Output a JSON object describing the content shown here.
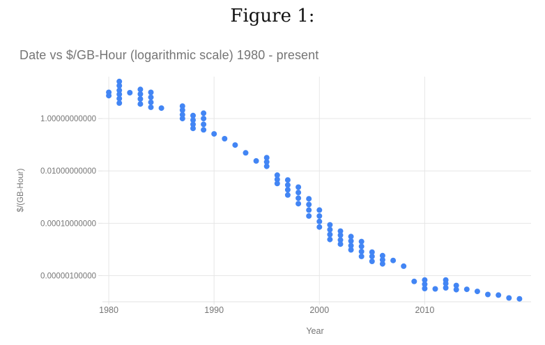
{
  "figure": {
    "caption": "Figure 1:"
  },
  "theme": {
    "background": "#ffffff",
    "grid_color": "#e6e6e6",
    "axis_line_color": "#e0e0e0",
    "label_color": "#757575",
    "title_color": "#757575",
    "caption_color": "#111111"
  },
  "chart_data": {
    "type": "scatter",
    "title": "Date vs $/GB-Hour (logarithmic scale) 1980 - present",
    "xlabel": "Year",
    "ylabel": "$/(GB-Hour)",
    "legend": "none",
    "grid": true,
    "point_color": "#4285f4",
    "x_axis": {
      "min": 1979.4,
      "max": 2020.1,
      "ticks": [
        1980,
        1990,
        2000,
        2010
      ]
    },
    "y_axis": {
      "scale": "log",
      "min": 1e-07,
      "max": 39.8,
      "tick_values": [
        1,
        0.01,
        0.0001,
        1e-06
      ],
      "tick_labels": [
        "1.00000000000",
        "0.01000000000",
        "0.00010000000",
        "0.00000100000"
      ]
    },
    "clusters": [
      {
        "year": 1980,
        "values": [
          10,
          7.5
        ]
      },
      {
        "year": 1981,
        "values": [
          26,
          18,
          12,
          8.5,
          5.8,
          3.9
        ]
      },
      {
        "year": 1982,
        "values": [
          9.7
        ]
      },
      {
        "year": 1983,
        "values": [
          13,
          8.6,
          5.6,
          3.6
        ]
      },
      {
        "year": 1984,
        "values": [
          10,
          6.5,
          4.2,
          2.7
        ]
      },
      {
        "year": 1985,
        "values": [
          2.5
        ]
      },
      {
        "year": 1987,
        "values": [
          3.0,
          2.1,
          1.4,
          1.0
        ]
      },
      {
        "year": 1988,
        "values": [
          1.3,
          0.88,
          0.6,
          0.42
        ]
      },
      {
        "year": 1989,
        "values": [
          1.6,
          1.0,
          0.6,
          0.37
        ]
      },
      {
        "year": 1990,
        "values": [
          0.26
        ]
      },
      {
        "year": 1991,
        "values": [
          0.17
        ]
      },
      {
        "year": 1992,
        "values": [
          0.097
        ]
      },
      {
        "year": 1993,
        "values": [
          0.049
        ]
      },
      {
        "year": 1994,
        "values": [
          0.024
        ]
      },
      {
        "year": 1995,
        "values": [
          0.032,
          0.022,
          0.015
        ]
      },
      {
        "year": 1996,
        "values": [
          0.0069,
          0.0047,
          0.0033
        ]
      },
      {
        "year": 1997,
        "values": [
          0.0045,
          0.0029,
          0.0019,
          0.0012
        ]
      },
      {
        "year": 1998,
        "values": [
          0.0024,
          0.0015,
          0.00091,
          0.00056
        ]
      },
      {
        "year": 1999,
        "values": [
          0.00086,
          0.00052,
          0.00032,
          0.00019
        ]
      },
      {
        "year": 2000,
        "values": [
          0.00032,
          0.00019,
          0.000117,
          7.2e-05
        ]
      },
      {
        "year": 2001,
        "values": [
          8.7e-05,
          5.7e-05,
          3.7e-05,
          2.4e-05
        ]
      },
      {
        "year": 2002,
        "values": [
          5e-05,
          3.5e-05,
          2.3e-05,
          1.6e-05
        ]
      },
      {
        "year": 2003,
        "values": [
          3.1e-05,
          2.1e-05,
          1.4e-05,
          9.6e-06
        ]
      },
      {
        "year": 2004,
        "values": [
          2e-05,
          1.3e-05,
          8.3e-06,
          5.4e-06
        ]
      },
      {
        "year": 2005,
        "values": [
          7.9e-06,
          5.4e-06,
          3.5e-06
        ]
      },
      {
        "year": 2006,
        "values": [
          5.8e-06,
          4e-06,
          2.8e-06
        ]
      },
      {
        "year": 2007,
        "values": [
          3.8e-06
        ]
      },
      {
        "year": 2008,
        "values": [
          2.3e-06
        ]
      },
      {
        "year": 2009,
        "values": [
          6e-07
        ]
      },
      {
        "year": 2010,
        "values": [
          6.8e-07,
          4.7e-07,
          3.2e-07
        ]
      },
      {
        "year": 2011,
        "values": [
          3.1e-07
        ]
      },
      {
        "year": 2012,
        "values": [
          6.8e-07,
          5e-07,
          3.4e-07
        ]
      },
      {
        "year": 2013,
        "values": [
          4.2e-07,
          2.9e-07
        ]
      },
      {
        "year": 2014,
        "values": [
          3e-07
        ]
      },
      {
        "year": 2015,
        "values": [
          2.5e-07
        ]
      },
      {
        "year": 2016,
        "values": [
          1.9e-07
        ]
      },
      {
        "year": 2017,
        "values": [
          1.8e-07
        ]
      },
      {
        "year": 2018,
        "values": [
          1.4e-07
        ]
      },
      {
        "year": 2019,
        "values": [
          1.3e-07
        ]
      }
    ]
  }
}
